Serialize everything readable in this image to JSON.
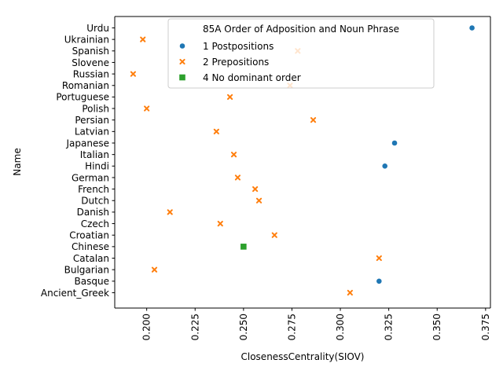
{
  "chart_data": {
    "type": "scatter",
    "xlabel": "ClosenessCentrality(SIOV)",
    "ylabel": "Name",
    "xlim": [
      0.1835,
      0.3775
    ],
    "xticks": [
      0.2,
      0.225,
      0.25,
      0.275,
      0.3,
      0.325,
      0.35,
      0.375
    ],
    "xtick_labels": [
      "0.200",
      "0.225",
      "0.250",
      "0.275",
      "0.300",
      "0.325",
      "0.350",
      "0.375"
    ],
    "categories": [
      "Urdu",
      "Ukrainian",
      "Spanish",
      "Slovene",
      "Russian",
      "Romanian",
      "Portuguese",
      "Polish",
      "Persian",
      "Latvian",
      "Japanese",
      "Italian",
      "Hindi",
      "German",
      "French",
      "Dutch",
      "Danish",
      "Czech",
      "Croatian",
      "Chinese",
      "Catalan",
      "Bulgarian",
      "Basque",
      "Ancient_Greek"
    ],
    "legend_title": "85A Order of Adposition and Noun Phrase",
    "legend_position": "top-right",
    "grid": false,
    "series": [
      {
        "name": "1 Postpositions",
        "marker": "circle",
        "color": "#1f77b4",
        "points": [
          [
            "Urdu",
            0.368
          ],
          [
            "Japanese",
            0.328
          ],
          [
            "Hindi",
            0.323
          ],
          [
            "Basque",
            0.32
          ]
        ]
      },
      {
        "name": "2 Prepositions",
        "marker": "x",
        "color": "#ff7f0e",
        "points": [
          [
            "Ukrainian",
            0.198
          ],
          [
            "Spanish",
            0.278
          ],
          [
            "Russian",
            0.193
          ],
          [
            "Romanian",
            0.274
          ],
          [
            "Portuguese",
            0.243
          ],
          [
            "Polish",
            0.2
          ],
          [
            "Persian",
            0.286
          ],
          [
            "Latvian",
            0.236
          ],
          [
            "Italian",
            0.245
          ],
          [
            "German",
            0.247
          ],
          [
            "French",
            0.256
          ],
          [
            "Dutch",
            0.258
          ],
          [
            "Danish",
            0.212
          ],
          [
            "Czech",
            0.238
          ],
          [
            "Croatian",
            0.266
          ],
          [
            "Catalan",
            0.32
          ],
          [
            "Bulgarian",
            0.204
          ],
          [
            "Ancient_Greek",
            0.305
          ]
        ]
      },
      {
        "name": "4 No dominant order",
        "marker": "square",
        "color": "#2ca02c",
        "points": [
          [
            "Chinese",
            0.25
          ]
        ]
      }
    ]
  }
}
